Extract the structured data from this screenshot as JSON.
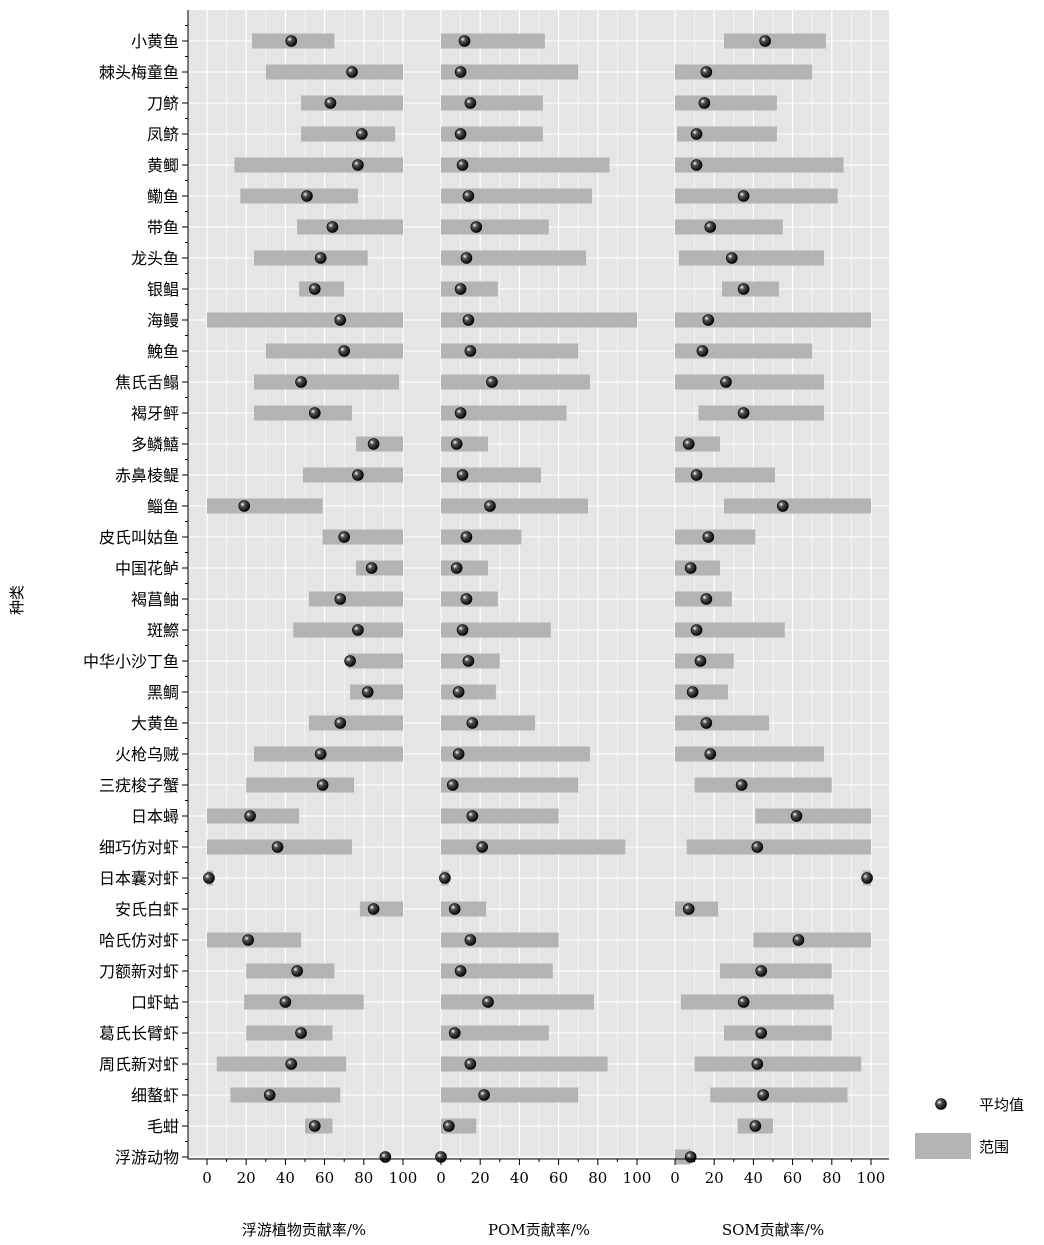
{
  "chart_data": {
    "type": "bar",
    "ylabel": "种类",
    "categories": [
      "小黄鱼",
      "棘头梅童鱼",
      "刀鲚",
      "凤鲚",
      "黄鲫",
      "鳓鱼",
      "带鱼",
      "龙头鱼",
      "银鲳",
      "海鳗",
      "鮸鱼",
      "焦氏舌鳎",
      "褐牙鲆",
      "多鳞鱚",
      "赤鼻棱鳀",
      "鲻鱼",
      "皮氏叫姑鱼",
      "中国花鲈",
      "褐菖鲉",
      "斑鰶",
      "中华小沙丁鱼",
      "黑鲷",
      "大黄鱼",
      "火枪乌贼",
      "三疣梭子蟹",
      "日本蟳",
      "细巧仿对虾",
      "日本囊对虾",
      "安氏白虾",
      "哈氏仿对虾",
      "刀额新对虾",
      "口虾蛄",
      "葛氏长臂虾",
      "周氏新对虾",
      "细螯虾",
      "毛蚶",
      "浮游动物"
    ],
    "legend": {
      "mean_label": "平均值",
      "range_label": "范围",
      "position": "right"
    },
    "panels": [
      {
        "xlabel": "浮游植物贡献率/%",
        "xlim": [
          0,
          100
        ],
        "xticks": [
          0,
          20,
          40,
          60,
          80,
          100
        ],
        "range_min": [
          23,
          30,
          48,
          48,
          14,
          17,
          46,
          24,
          47,
          0,
          30,
          24,
          24,
          76,
          49,
          0,
          59,
          76,
          52,
          44,
          72,
          73,
          52,
          24,
          20,
          0,
          0,
          0,
          78,
          0,
          20,
          19,
          20,
          5,
          12,
          50,
          91
        ],
        "range_max": [
          65,
          100,
          100,
          96,
          100,
          77,
          100,
          82,
          70,
          100,
          100,
          98,
          74,
          100,
          100,
          59,
          100,
          100,
          100,
          100,
          100,
          100,
          100,
          100,
          75,
          47,
          74,
          3,
          100,
          48,
          65,
          80,
          64,
          71,
          68,
          64,
          91
        ],
        "mean": [
          43,
          74,
          63,
          79,
          77,
          51,
          64,
          58,
          55,
          68,
          70,
          48,
          55,
          85,
          77,
          19,
          70,
          84,
          68,
          77,
          73,
          82,
          68,
          58,
          59,
          22,
          36,
          1,
          85,
          21,
          46,
          40,
          48,
          43,
          32,
          55,
          91
        ]
      },
      {
        "xlabel": "POM贡献率/%",
        "xlim": [
          0,
          100
        ],
        "xticks": [
          0,
          20,
          40,
          60,
          80,
          100
        ],
        "range_min": [
          0,
          0,
          0,
          0,
          0,
          0,
          0,
          0,
          0,
          0,
          0,
          0,
          0,
          0,
          0,
          0,
          0,
          0,
          0,
          0,
          0,
          0,
          0,
          0,
          0,
          0,
          0,
          0,
          0,
          0,
          0,
          0,
          0,
          0,
          0,
          0,
          0
        ],
        "range_max": [
          53,
          70,
          52,
          52,
          86,
          77,
          55,
          74,
          29,
          100,
          70,
          76,
          64,
          24,
          51,
          75,
          41,
          24,
          29,
          56,
          30,
          28,
          48,
          76,
          70,
          60,
          94,
          4,
          23,
          60,
          57,
          78,
          55,
          85,
          70,
          18,
          0
        ],
        "mean": [
          12,
          10,
          15,
          10,
          11,
          14,
          18,
          13,
          10,
          14,
          15,
          26,
          10,
          8,
          11,
          25,
          13,
          8,
          13,
          11,
          14,
          9,
          16,
          9,
          6,
          16,
          21,
          2,
          7,
          15,
          10,
          24,
          7,
          15,
          22,
          4,
          0
        ]
      },
      {
        "xlabel": "SOM贡献率/%",
        "xlim": [
          0,
          100
        ],
        "xticks": [
          0,
          20,
          40,
          60,
          80,
          100
        ],
        "range_min": [
          25,
          0,
          0,
          1,
          0,
          0,
          0,
          2,
          24,
          0,
          0,
          0,
          12,
          0,
          0,
          25,
          0,
          0,
          0,
          0,
          0,
          0,
          0,
          0,
          10,
          41,
          6,
          96,
          0,
          40,
          23,
          3,
          25,
          10,
          18,
          32,
          0
        ],
        "range_max": [
          77,
          70,
          52,
          52,
          86,
          83,
          55,
          76,
          53,
          100,
          70,
          76,
          76,
          23,
          51,
          100,
          41,
          23,
          29,
          56,
          30,
          27,
          48,
          76,
          80,
          100,
          100,
          100,
          22,
          100,
          80,
          81,
          80,
          95,
          88,
          50,
          8
        ],
        "mean": [
          46,
          16,
          15,
          11,
          11,
          35,
          18,
          29,
          35,
          17,
          14,
          26,
          35,
          7,
          11,
          55,
          17,
          8,
          16,
          11,
          13,
          9,
          16,
          18,
          34,
          62,
          42,
          98,
          7,
          63,
          44,
          35,
          44,
          42,
          45,
          41,
          8
        ]
      }
    ]
  }
}
